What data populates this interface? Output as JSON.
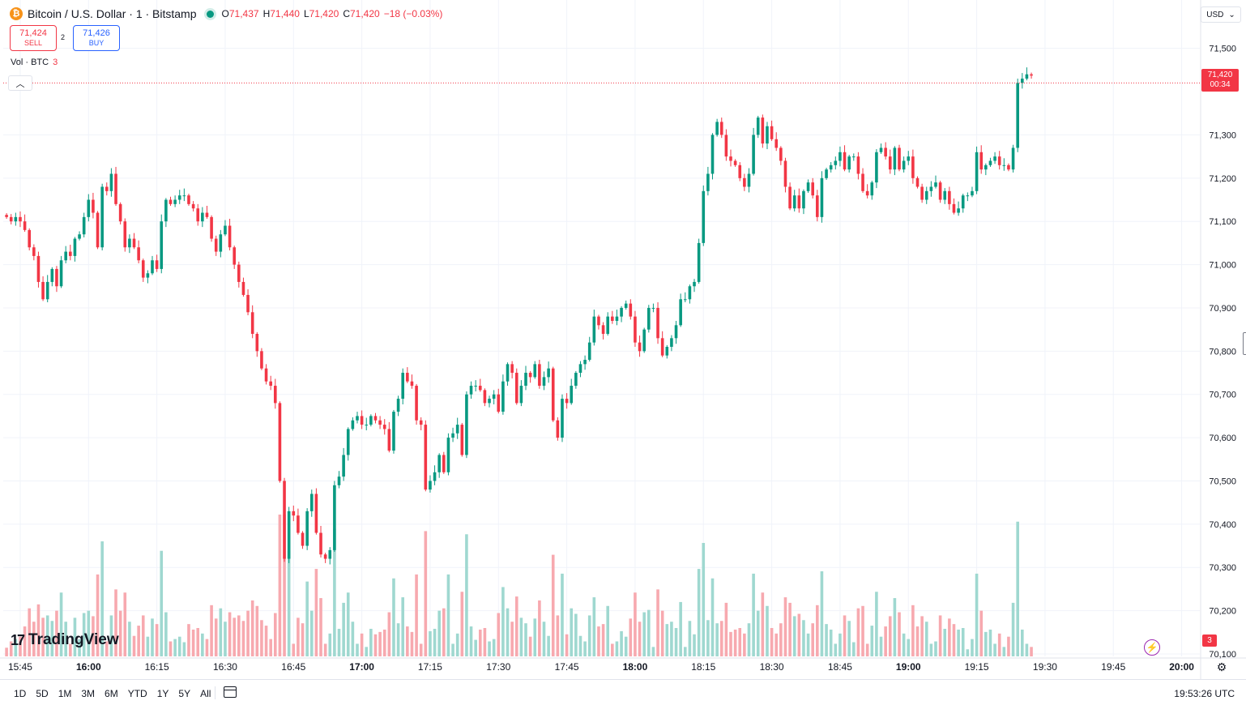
{
  "header": {
    "icon": "bitcoin-icon",
    "symbol": "Bitcoin / U.S. Dollar · 1 · Bitstamp",
    "o_label": "O",
    "o_value": "71,437",
    "h_label": "H",
    "h_value": "71,440",
    "l_label": "L",
    "l_value": "71,420",
    "c_label": "C",
    "c_value": "71,420",
    "change": "−18 (−0.03%)"
  },
  "trade": {
    "sell_price": "71,424",
    "sell_label": "SELL",
    "spread": "2",
    "buy_price": "71,426",
    "buy_label": "BUY"
  },
  "volume_legend": {
    "label": "Vol · BTC",
    "value": "3"
  },
  "currency": "USD",
  "last_price": {
    "price": "71,420",
    "countdown": "00:34"
  },
  "last_volume": "3",
  "brand": "TradingView",
  "ranges": [
    "1D",
    "5D",
    "1M",
    "3M",
    "6M",
    "YTD",
    "1Y",
    "5Y",
    "All"
  ],
  "clock": "19:53:26 UTC",
  "colors": {
    "up": "#089981",
    "down": "#f23645",
    "up_volume": "#9fd8d0",
    "down_volume": "#f7a9af",
    "grid": "#f0f3fa"
  },
  "chart_data": {
    "type": "candlestick",
    "interval_minutes": 1,
    "start_time": "15:42",
    "ylim": [
      70100,
      71520
    ],
    "yticks": [
      71500,
      71300,
      71200,
      71100,
      71000,
      70900,
      70800,
      70700,
      70600,
      70500,
      70400,
      70300,
      70200,
      70100
    ],
    "ytick_labels": [
      "71,500",
      "71,300",
      "71,200",
      "71,100",
      "71,000",
      "70,900",
      "70,800",
      "70,700",
      "70,600",
      "70,500",
      "70,400",
      "70,300",
      "70,200",
      "70,100"
    ],
    "xtick_labels": [
      "15:45",
      "16:00",
      "16:15",
      "16:30",
      "16:45",
      "17:00",
      "17:15",
      "17:30",
      "17:45",
      "18:00",
      "18:15",
      "18:30",
      "18:45",
      "19:00",
      "19:15",
      "19:30",
      "19:45",
      "20:00"
    ],
    "volume_max": 60,
    "closes": [
      71110,
      71100,
      71110,
      71100,
      71080,
      71040,
      71020,
      70960,
      70920,
      70960,
      70990,
      70950,
      71010,
      71030,
      71020,
      71060,
      71070,
      71110,
      71150,
      71120,
      71040,
      71180,
      71170,
      71210,
      71140,
      71100,
      71040,
      71060,
      71040,
      71010,
      70970,
      70980,
      71010,
      70990,
      71100,
      71150,
      71140,
      71150,
      71160,
      71160,
      71140,
      71130,
      71100,
      71120,
      71110,
      71060,
      71030,
      71070,
      71090,
      71040,
      71000,
      70960,
      70930,
      70890,
      70840,
      70800,
      70760,
      70730,
      70720,
      70680,
      70500,
      70320,
      70430,
      70420,
      70380,
      70350,
      70430,
      70470,
      70380,
      70330,
      70320,
      70340,
      70490,
      70510,
      70560,
      70620,
      70640,
      70650,
      70630,
      70630,
      70650,
      70640,
      70630,
      70620,
      70570,
      70660,
      70690,
      70750,
      70730,
      70720,
      70640,
      70630,
      70480,
      70500,
      70520,
      70560,
      70520,
      70600,
      70610,
      70630,
      70560,
      70700,
      70720,
      70720,
      70710,
      70680,
      70690,
      70700,
      70660,
      70730,
      70770,
      70750,
      70680,
      70720,
      70750,
      70740,
      70770,
      70720,
      70740,
      70760,
      70640,
      70600,
      70690,
      70680,
      70720,
      70750,
      70770,
      70780,
      70820,
      70880,
      70860,
      70840,
      70880,
      70870,
      70880,
      70900,
      70910,
      70880,
      70820,
      70800,
      70850,
      70900,
      70900,
      70830,
      70790,
      70810,
      70830,
      70860,
      70920,
      70920,
      70950,
      70960,
      71050,
      71170,
      71210,
      71300,
      71330,
      71300,
      71250,
      71240,
      71230,
      71200,
      71180,
      71210,
      71300,
      71340,
      71280,
      71320,
      71290,
      71270,
      71240,
      71180,
      71130,
      71160,
      71130,
      71170,
      71190,
      71160,
      71110,
      71200,
      71220,
      71230,
      71240,
      71260,
      71220,
      71250,
      71250,
      71210,
      71170,
      71160,
      71190,
      71260,
      71270,
      71250,
      71220,
      71270,
      71220,
      71240,
      71250,
      71200,
      71180,
      71150,
      71170,
      71180,
      71190,
      71150,
      71170,
      71140,
      71120,
      71130,
      71160,
      71160,
      71170,
      71260,
      71220,
      71230,
      71240,
      71250,
      71230,
      71230,
      71220,
      71270,
      71420,
      71430,
      71440,
      71437
    ]
  }
}
